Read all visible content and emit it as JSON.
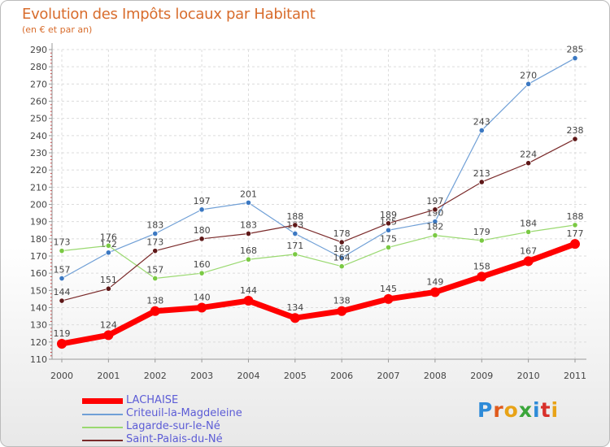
{
  "title": "Evolution des Impôts locaux par Habitant",
  "subtitle": "(en € et par an)",
  "logo": {
    "text": "Proxiti",
    "colors": [
      "#2e8bd8",
      "#e05a1c",
      "#e8a317",
      "#3aa63a",
      "#2e8bd8",
      "#d8302a",
      "#e8a317"
    ]
  },
  "chart_data": {
    "type": "line",
    "x": [
      "2000",
      "2001",
      "2002",
      "2003",
      "2004",
      "2005",
      "2006",
      "2007",
      "2008",
      "2009",
      "2010",
      "2011"
    ],
    "ylim": [
      110,
      290
    ],
    "yticks": [
      110,
      120,
      130,
      140,
      150,
      160,
      170,
      180,
      190,
      200,
      210,
      220,
      230,
      240,
      250,
      260,
      270,
      280,
      290
    ],
    "grid": true,
    "series": [
      {
        "name": "Criteuil-la-Magdeleine",
        "color": "#6f9fd6",
        "point": "#3b78c2",
        "width": 1.2,
        "values": [
          157,
          172,
          183,
          197,
          201,
          183,
          169,
          185,
          190,
          243,
          270,
          285
        ]
      },
      {
        "name": "Lagarde-sur-le-Né",
        "color": "#9ad970",
        "point": "#7ac943",
        "width": 1.2,
        "values": [
          173,
          176,
          157,
          160,
          168,
          171,
          164,
          175,
          182,
          179,
          184,
          188
        ]
      },
      {
        "name": "Saint-Palais-du-Né",
        "color": "#7a2a2a",
        "point": "#5e1818",
        "width": 1.2,
        "values": [
          144,
          151,
          173,
          180,
          183,
          188,
          178,
          189,
          197,
          213,
          224,
          238
        ]
      },
      {
        "name": "LACHAISE",
        "color": "#ff0000",
        "point": "#ff0000",
        "width": 7,
        "values": [
          119,
          124,
          138,
          140,
          144,
          134,
          138,
          145,
          149,
          158,
          167,
          177
        ]
      }
    ],
    "legend_order": [
      "LACHAISE",
      "Criteuil-la-Magdeleine",
      "Lagarde-sur-le-Né",
      "Saint-Palais-du-Né"
    ],
    "labels": {
      "Criteuil-la-Magdeleine": [
        "157",
        "172",
        "183",
        "197",
        "201",
        "183",
        "169",
        "185",
        "190",
        "243",
        "270",
        "285"
      ],
      "Lagarde-sur-le-Né": [
        "173",
        "176",
        "157",
        "160",
        "168",
        "171",
        "164",
        "175",
        "182",
        "179",
        "184",
        "188"
      ],
      "Saint-Palais-du-Né": [
        "144",
        "151",
        "173",
        "180",
        "183",
        "188",
        "178",
        "189",
        "197",
        "213",
        "224",
        "238"
      ],
      "LACHAISE": [
        "119",
        "124",
        "138",
        "140",
        "144",
        "134",
        "138",
        "145",
        "149",
        "158",
        "167",
        "177"
      ]
    }
  }
}
